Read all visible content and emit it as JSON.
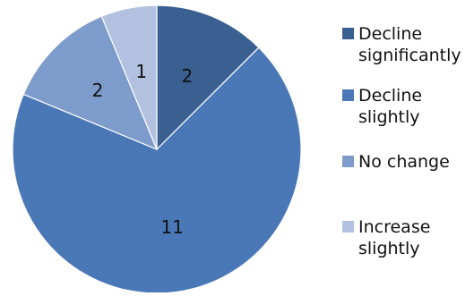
{
  "chart_data": {
    "type": "pie",
    "title": "",
    "categories": [
      "Decline significantly",
      "Decline slightly",
      "No change",
      "Increase slightly"
    ],
    "values": [
      2,
      11,
      2,
      1
    ],
    "data_labels": [
      "2",
      "11",
      "2",
      "1"
    ],
    "colors": [
      "#3A5F91",
      "#4A78B7",
      "#7D9CCB",
      "#B2C1DF"
    ],
    "legend": {
      "placement": "right",
      "items": [
        {
          "label_lines": [
            "Decline",
            "significantly"
          ],
          "color": "#3A5F91"
        },
        {
          "label_lines": [
            "Decline",
            "slightly"
          ],
          "color": "#4A78B7"
        },
        {
          "label_lines": [
            "No change"
          ],
          "color": "#7D9CCB"
        },
        {
          "label_lines": [
            "Increase",
            "slightly"
          ],
          "color": "#B2C1DF"
        }
      ]
    },
    "start_angle_deg": 0,
    "direction": "clockwise"
  }
}
